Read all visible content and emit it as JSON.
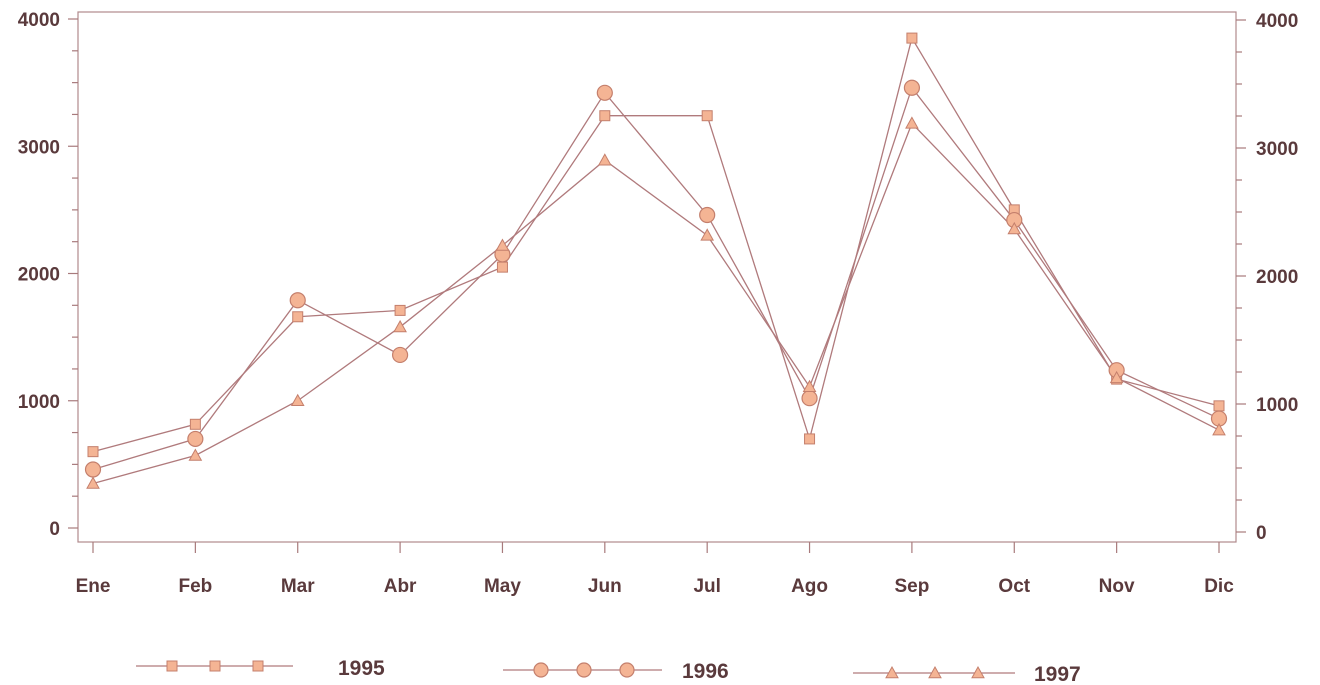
{
  "chart_data": {
    "type": "line",
    "categories": [
      "Ene",
      "Feb",
      "Mar",
      "Abr",
      "May",
      "Jun",
      "Jul",
      "Ago",
      "Sep",
      "Oct",
      "Nov",
      "Dic"
    ],
    "series": [
      {
        "name": "1995",
        "marker": "square",
        "values": [
          600,
          815,
          1660,
          1710,
          2050,
          3240,
          3240,
          700,
          3850,
          2500,
          1170,
          960
        ]
      },
      {
        "name": "1996",
        "marker": "circle",
        "values": [
          460,
          700,
          1790,
          1360,
          2150,
          3420,
          2460,
          1020,
          3460,
          2420,
          1240,
          860
        ]
      },
      {
        "name": "1997",
        "marker": "triangle",
        "values": [
          350,
          570,
          1000,
          1580,
          2220,
          2890,
          2300,
          1110,
          3180,
          2350,
          1180,
          770
        ]
      }
    ],
    "y_left": {
      "ylim": [
        0,
        4000
      ],
      "ticks": [
        "0",
        "1000",
        "2000",
        "3000",
        "4000"
      ]
    },
    "y_right": {
      "ylim": [
        0,
        4000
      ],
      "ticks": [
        "0",
        "1000",
        "2000",
        "3000",
        "4000"
      ]
    },
    "legend": {
      "position": "bottom"
    },
    "grid": false,
    "colors": {
      "line": "#b07a7c",
      "marker_fill": "#f4b494",
      "marker_edge": "#c47f6c",
      "axis": "#a87a7c",
      "text": "#5a3a3c"
    }
  }
}
